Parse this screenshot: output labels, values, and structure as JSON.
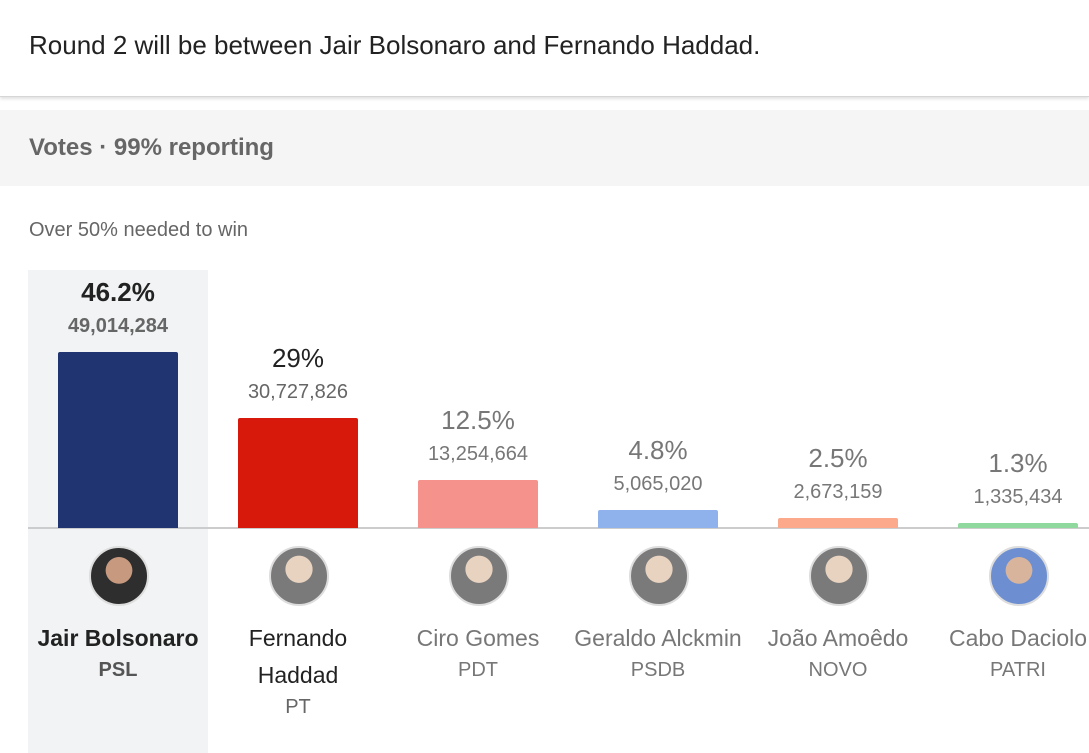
{
  "header": {
    "text": "Round 2 will be between Jair Bolsonaro and Fernando Haddad."
  },
  "chart_data": {
    "type": "bar",
    "title": "Votes · 99% reporting",
    "annotation": "Over 50% needed to win",
    "categories": [
      "Jair Bolsonaro",
      "Fernando Haddad",
      "Ciro Gomes",
      "Geraldo Alckmin",
      "João Amoêdo",
      "Cabo Daciolo"
    ],
    "parties": [
      "PSL",
      "PT",
      "PDT",
      "PSDB",
      "NOVO",
      "PATRI"
    ],
    "values": [
      46.2,
      29,
      12.5,
      4.8,
      2.5,
      1.3
    ],
    "value_labels": [
      "46.2%",
      "29%",
      "12.5%",
      "4.8%",
      "2.5%",
      "1.3%"
    ],
    "votes": [
      "49,014,284",
      "30,727,826",
      "13,254,664",
      "5,065,020",
      "2,673,159",
      "1,335,434"
    ],
    "colors": [
      "#1f3470",
      "#d7190b",
      "#f4928b",
      "#90b2ec",
      "#fba98a",
      "#8fd89e"
    ]
  }
}
